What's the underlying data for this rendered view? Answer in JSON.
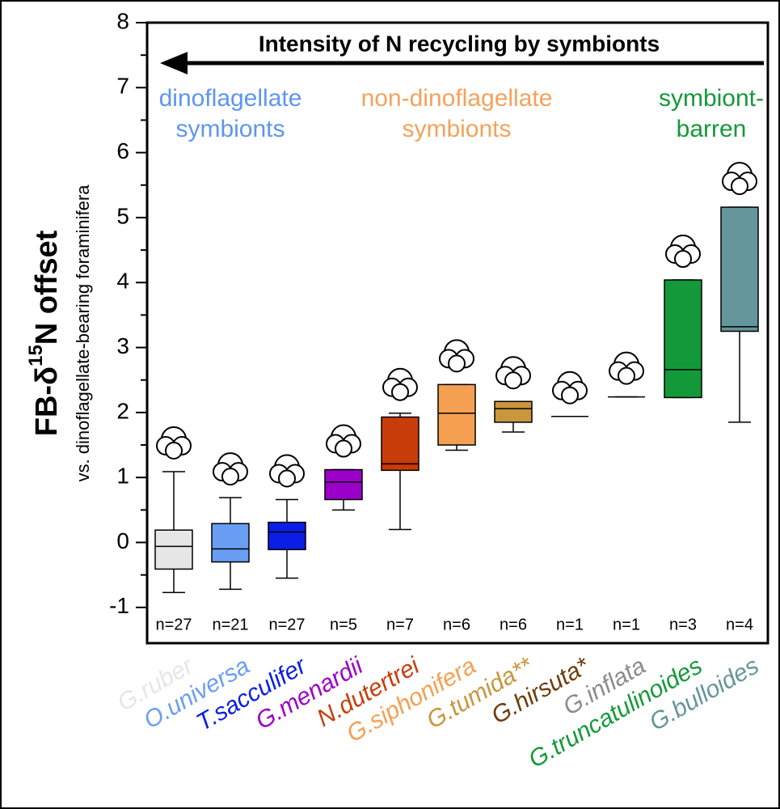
{
  "chart_data": {
    "type": "box",
    "ylabel_parts": [
      "FB-δ",
      "15",
      "N offset"
    ],
    "ylabel_sub": "vs. dinoflagellate-bearing foraminifera",
    "arrow_label": "Intensity of N recycling by symbionts",
    "group_labels": [
      {
        "lines": [
          "dinoflagellate",
          "symbionts"
        ],
        "color": "#5e95f0",
        "from": 0,
        "to": 2
      },
      {
        "lines": [
          "non-dinoflagellate",
          "symbionts"
        ],
        "color": "#f4a25c",
        "from": 4,
        "to": 6
      },
      {
        "lines": [
          "symbiont-",
          "barren"
        ],
        "color": "#14993a",
        "from": 9,
        "to": 10
      }
    ],
    "categories": [
      "G.ruber",
      "O.universa",
      "T.sacculifer",
      "G.menardii",
      "N.dutertrei",
      "G.siphonifera",
      "G.tumida**",
      "G.hirsuta*",
      "G.inflata",
      "G.truncatulinoides",
      "G.bulloides"
    ],
    "colors": [
      "#e6e6e6",
      "#6a9ef5",
      "#0a1ee6",
      "#9c00c8",
      "#c83c0a",
      "#f5a050",
      "#c8963c",
      "#6e3c0a",
      "#8c8c8c",
      "#14993a",
      "#64969b"
    ],
    "n_labels": [
      "n=27",
      "n=21",
      "n=27",
      "n=5",
      "n=7",
      "n=6",
      "n=6",
      "n=1",
      "n=1",
      "n=3",
      "n=4"
    ],
    "boxes": [
      {
        "min": -0.77,
        "q1": -0.41,
        "median": -0.06,
        "q3": 0.19,
        "max": 1.09
      },
      {
        "min": -0.72,
        "q1": -0.3,
        "median": -0.1,
        "q3": 0.29,
        "max": 0.69
      },
      {
        "min": -0.55,
        "q1": -0.11,
        "median": 0.16,
        "q3": 0.31,
        "max": 0.66
      },
      {
        "min": 0.5,
        "q1": 0.66,
        "median": 0.93,
        "q3": 1.12,
        "max": 1.12
      },
      {
        "min": 0.2,
        "q1": 1.11,
        "median": 1.21,
        "q3": 1.93,
        "max": 1.99
      },
      {
        "min": 1.42,
        "q1": 1.5,
        "median": 1.99,
        "q3": 2.43,
        "max": 2.43
      },
      {
        "min": 1.7,
        "q1": 1.85,
        "median": 2.06,
        "q3": 2.17,
        "max": 2.17
      },
      {
        "min": 1.94,
        "q1": 1.94,
        "median": 1.94,
        "q3": 1.94,
        "max": 1.94
      },
      {
        "min": 2.24,
        "q1": 2.24,
        "median": 2.24,
        "q3": 2.24,
        "max": 2.24
      },
      {
        "min": 2.23,
        "q1": 2.23,
        "median": 2.66,
        "q3": 4.04,
        "max": 4.04
      },
      {
        "min": 1.85,
        "q1": 3.25,
        "median": 3.32,
        "q3": 5.16,
        "max": 5.16
      }
    ],
    "ylim": [
      -1.55,
      8
    ],
    "yticks": [
      -1,
      0,
      1,
      2,
      3,
      4,
      5,
      6,
      7,
      8
    ]
  }
}
